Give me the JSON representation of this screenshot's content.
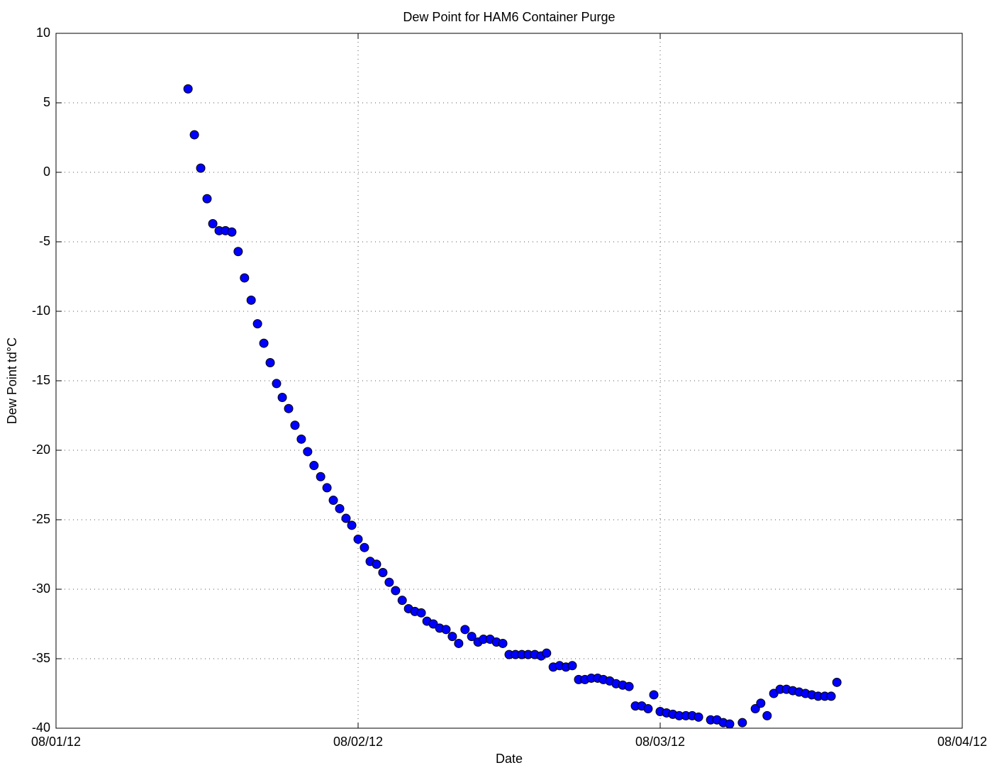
{
  "chart_data": {
    "type": "scatter",
    "title": "Dew Point for HAM6 Container Purge",
    "x_label": "Date",
    "y_label": "Dew Point td°C",
    "xlim": [
      0,
      3
    ],
    "xticks": [
      {
        "value": 0,
        "label": "08/01/12"
      },
      {
        "value": 1,
        "label": "08/02/12"
      },
      {
        "value": 2,
        "label": "08/03/12"
      },
      {
        "value": 3,
        "label": "08/04/12"
      }
    ],
    "ylim": [
      -40,
      10
    ],
    "yticks": [
      -40,
      -35,
      -30,
      -25,
      -20,
      -15,
      -10,
      -5,
      0,
      5,
      10
    ],
    "grid": true,
    "color": "#0000ff",
    "x": [
      0.437,
      0.458,
      0.479,
      0.5,
      0.519,
      0.54,
      0.561,
      0.582,
      0.603,
      0.624,
      0.646,
      0.667,
      0.688,
      0.709,
      0.73,
      0.749,
      0.77,
      0.791,
      0.812,
      0.833,
      0.854,
      0.876,
      0.897,
      0.918,
      0.939,
      0.96,
      0.979,
      1.0,
      1.021,
      1.04,
      1.061,
      1.082,
      1.103,
      1.124,
      1.146,
      1.167,
      1.188,
      1.209,
      1.228,
      1.249,
      1.27,
      1.291,
      1.312,
      1.333,
      1.354,
      1.376,
      1.397,
      1.415,
      1.437,
      1.458,
      1.479,
      1.5,
      1.521,
      1.542,
      1.563,
      1.585,
      1.606,
      1.624,
      1.646,
      1.667,
      1.688,
      1.709,
      1.73,
      1.751,
      1.772,
      1.793,
      1.812,
      1.833,
      1.854,
      1.876,
      1.897,
      1.918,
      1.939,
      1.96,
      1.979,
      2.0,
      2.021,
      2.042,
      2.063,
      2.085,
      2.106,
      2.127,
      2.167,
      2.188,
      2.209,
      2.23,
      2.272,
      2.315,
      2.333,
      2.354,
      2.376,
      2.397,
      2.418,
      2.439,
      2.46,
      2.481,
      2.502,
      2.523,
      2.545,
      2.566,
      2.585
    ],
    "values": [
      6.0,
      2.7,
      0.3,
      -1.9,
      -3.7,
      -4.2,
      -4.2,
      -4.3,
      -5.7,
      -7.6,
      -9.2,
      -10.9,
      -12.3,
      -13.7,
      -15.2,
      -16.2,
      -17.0,
      -18.2,
      -19.2,
      -20.1,
      -21.1,
      -21.9,
      -22.7,
      -23.6,
      -24.2,
      -24.9,
      -25.4,
      -26.4,
      -27.0,
      -28.0,
      -28.2,
      -28.8,
      -29.5,
      -30.1,
      -30.8,
      -31.4,
      -31.6,
      -31.7,
      -32.3,
      -32.5,
      -32.8,
      -32.9,
      -33.4,
      -33.9,
      -32.9,
      -33.4,
      -33.8,
      -33.6,
      -33.6,
      -33.8,
      -33.9,
      -34.7,
      -34.7,
      -34.7,
      -34.7,
      -34.7,
      -34.8,
      -34.6,
      -35.6,
      -35.5,
      -35.6,
      -35.5,
      -36.5,
      -36.5,
      -36.4,
      -36.4,
      -36.5,
      -36.6,
      -36.8,
      -36.9,
      -37.0,
      -38.4,
      -38.4,
      -38.6,
      -37.6,
      -38.8,
      -38.9,
      -39.0,
      -39.1,
      -39.1,
      -39.1,
      -39.2,
      -39.4,
      -39.4,
      -39.6,
      -39.7,
      -39.6,
      -38.6,
      -38.2,
      -39.1,
      -37.5,
      -37.2,
      -37.2,
      -37.3,
      -37.4,
      -37.5,
      -37.6,
      -37.7,
      -37.7,
      -37.7,
      -36.7
    ]
  }
}
